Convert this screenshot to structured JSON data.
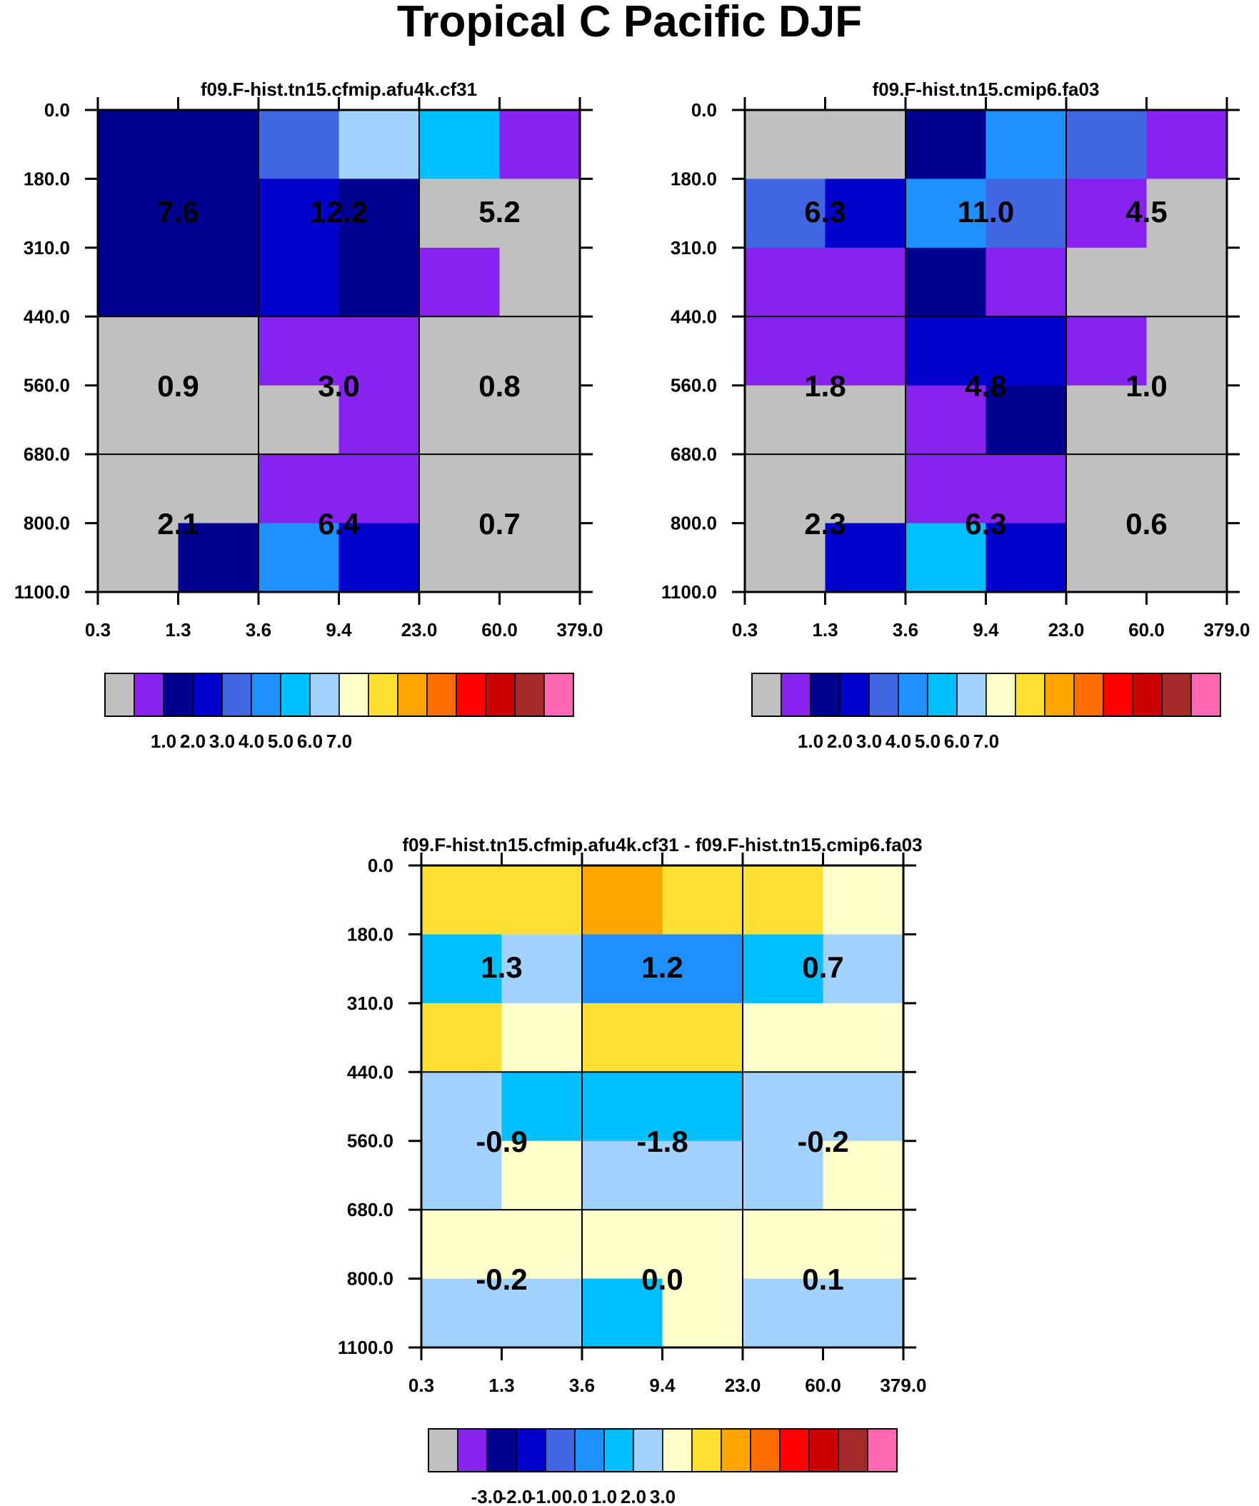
{
  "title": "Tropical C Pacific DJF",
  "colors": {
    "palette": [
      "#c0c0c0",
      "#8822ee",
      "#000090",
      "#0000cc",
      "#4166e1",
      "#1e90ff",
      "#00bfff",
      "#a2d2ff",
      "#ffffcc",
      "#ffe033",
      "#ffa500",
      "#ff6c00",
      "#ff0000",
      "#cc0000",
      "#a52a2a",
      "#ff69b4"
    ]
  },
  "chart_data": [
    {
      "type": "heatmap",
      "title": "f09.F-hist.tn15.cfmip.afu4k.cf31",
      "x_ticks": [
        "0.3",
        "1.3",
        "3.6",
        "9.4",
        "23.0",
        "60.0",
        "379.0"
      ],
      "y_ticks": [
        "0.0",
        "180.0",
        "310.0",
        "440.0",
        "560.0",
        "680.0",
        "800.0",
        "1100.0"
      ],
      "cells": [
        [
          2,
          2,
          4,
          7,
          6,
          1
        ],
        [
          2,
          2,
          3,
          2,
          0,
          0
        ],
        [
          2,
          2,
          3,
          2,
          1,
          0
        ],
        [
          0,
          0,
          1,
          1,
          0,
          0
        ],
        [
          0,
          0,
          0,
          1,
          0,
          0
        ],
        [
          0,
          0,
          1,
          1,
          0,
          0
        ],
        [
          0,
          2,
          5,
          3,
          0,
          0
        ]
      ],
      "box_values": [
        [
          "7.6",
          "12.2",
          "5.2"
        ],
        [
          "0.9",
          "3.0",
          "0.8"
        ],
        [
          "2.1",
          "6.4",
          "0.7"
        ]
      ],
      "colorbar_labels": [
        "1.0",
        "2.0",
        "3.0",
        "4.0",
        "5.0",
        "6.0",
        "7.0"
      ]
    },
    {
      "type": "heatmap",
      "title": "f09.F-hist.tn15.cmip6.fa03",
      "x_ticks": [
        "0.3",
        "1.3",
        "3.6",
        "9.4",
        "23.0",
        "60.0",
        "379.0"
      ],
      "y_ticks": [
        "0.0",
        "180.0",
        "310.0",
        "440.0",
        "560.0",
        "680.0",
        "800.0",
        "1100.0"
      ],
      "cells": [
        [
          0,
          0,
          2,
          5,
          4,
          1
        ],
        [
          4,
          3,
          5,
          4,
          1,
          0
        ],
        [
          1,
          1,
          2,
          1,
          0,
          0
        ],
        [
          1,
          1,
          3,
          3,
          1,
          0
        ],
        [
          0,
          0,
          1,
          2,
          0,
          0
        ],
        [
          0,
          0,
          1,
          1,
          0,
          0
        ],
        [
          0,
          3,
          6,
          3,
          0,
          0
        ]
      ],
      "box_values": [
        [
          "6.3",
          "11.0",
          "4.5"
        ],
        [
          "1.8",
          "4.8",
          "1.0"
        ],
        [
          "2.3",
          "6.3",
          "0.6"
        ]
      ],
      "colorbar_labels": [
        "1.0",
        "2.0",
        "3.0",
        "4.0",
        "5.0",
        "6.0",
        "7.0"
      ]
    },
    {
      "type": "heatmap",
      "title": "f09.F-hist.tn15.cfmip.afu4k.cf31 - f09.F-hist.tn15.cmip6.fa03",
      "x_ticks": [
        "0.3",
        "1.3",
        "3.6",
        "9.4",
        "23.0",
        "60.0",
        "379.0"
      ],
      "y_ticks": [
        "0.0",
        "180.0",
        "310.0",
        "440.0",
        "560.0",
        "680.0",
        "800.0",
        "1100.0"
      ],
      "cells": [
        [
          9,
          9,
          10,
          9,
          9,
          8
        ],
        [
          6,
          7,
          5,
          5,
          6,
          7
        ],
        [
          9,
          8,
          9,
          9,
          8,
          8
        ],
        [
          7,
          6,
          6,
          6,
          7,
          7
        ],
        [
          7,
          8,
          7,
          7,
          7,
          8
        ],
        [
          8,
          8,
          8,
          8,
          8,
          8
        ],
        [
          7,
          7,
          6,
          8,
          7,
          7
        ]
      ],
      "box_values": [
        [
          "1.3",
          "1.2",
          "0.7"
        ],
        [
          "-0.9",
          "-1.8",
          "-0.2"
        ],
        [
          "-0.2",
          "0.0",
          "0.1"
        ]
      ],
      "colorbar_labels": [
        "-3.0",
        "-2.0",
        "-1.0",
        "0.0",
        "1.0",
        "2.0",
        "3.0"
      ]
    }
  ]
}
